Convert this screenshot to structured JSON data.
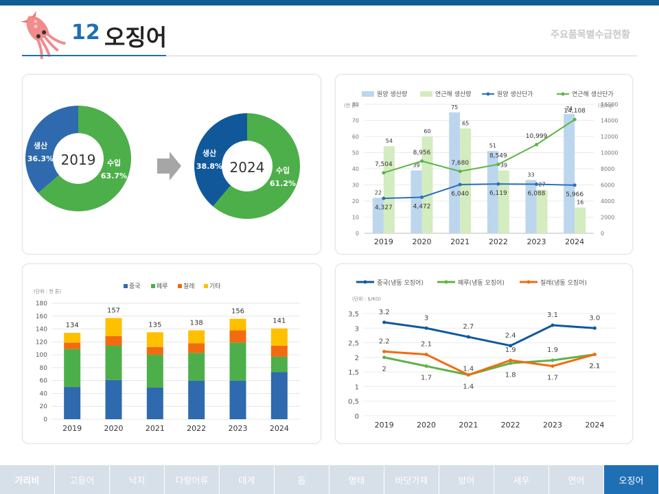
{
  "header": {
    "number": "12",
    "title": "오징어",
    "subtitle": "주요품목별수급현황"
  },
  "colors": {
    "blue_dark": "#2e6aad",
    "green": "#4daf4a",
    "orange": "#f26b0f",
    "yellow": "#ffc000",
    "light_blue": "#bcd6ee",
    "light_green": "#d3ecc0",
    "navy": "#10589a",
    "line_blue": "#2b70b8",
    "line_green": "#5db347",
    "accent": "#1f6fb5"
  },
  "nav": {
    "items": [
      "가리비",
      "고등어",
      "낙지",
      "다랑어류",
      "대게",
      "돔",
      "명태",
      "바닷가재",
      "방어",
      "새우",
      "연어",
      "오징어"
    ],
    "active": 11
  },
  "chart_data": [
    {
      "type": "pie",
      "variant": "donut",
      "center_label": "2019",
      "slices": [
        {
          "label": "생산",
          "value_label": "36.3%",
          "value": 36.3
        },
        {
          "label": "수입",
          "value_label": "63.7%",
          "value": 63.7
        }
      ]
    },
    {
      "type": "pie",
      "variant": "donut",
      "center_label": "2024",
      "slices": [
        {
          "label": "생산",
          "value_label": "38.8%",
          "value": 38.8
        },
        {
          "label": "수입",
          "value_label": "61.2%",
          "value": 61.2
        }
      ]
    },
    {
      "type": "bar",
      "categories": [
        "2019",
        "2020",
        "2021",
        "2022",
        "2023",
        "2024"
      ],
      "y_unit_label": "(천 톤)",
      "y2_unit_label": "(원/kg)",
      "ylim": [
        0,
        80
      ],
      "y_ticks": [
        0,
        10,
        20,
        30,
        40,
        50,
        60,
        70,
        80
      ],
      "y2lim": [
        0,
        16000
      ],
      "y2_ticks": [
        0,
        2000,
        4000,
        6000,
        8000,
        10000,
        12000,
        14000,
        16000
      ],
      "legend": [
        "원양 생산량",
        "연근해 생산량",
        "원양 생산단가",
        "연근해 생산단가"
      ],
      "legend_position": "top",
      "bar_series": [
        {
          "name": "원양 생산량",
          "values": [
            22,
            39,
            75,
            51,
            33,
            74
          ],
          "labels": [
            "22",
            "39",
            "75",
            "51",
            "33",
            "74"
          ]
        },
        {
          "name": "연근해 생산량",
          "values": [
            54,
            60,
            65,
            39,
            27,
            16
          ],
          "labels": [
            "54",
            "60",
            "65",
            "39",
            "27",
            "16"
          ]
        }
      ],
      "line_series": [
        {
          "name": "원양 생산단가",
          "axis": "right",
          "values": [
            4327,
            4472,
            6040,
            6119,
            6088,
            5966
          ],
          "labels": [
            "4,327",
            "4,472",
            "6,040",
            "6,119",
            "6,088",
            "5,966"
          ]
        },
        {
          "name": "연근해 생산단가",
          "axis": "right",
          "values": [
            7504,
            8956,
            7680,
            8549,
            10999,
            14108
          ],
          "labels": [
            "7,504",
            "8,956",
            "7,680",
            "8,549",
            "10,999",
            "14,108"
          ]
        }
      ]
    },
    {
      "type": "bar",
      "stacked": true,
      "unit_label": "(단위 : 천 톤)",
      "categories": [
        "2019",
        "2020",
        "2021",
        "2022",
        "2023",
        "2024"
      ],
      "ylim": [
        0,
        180
      ],
      "y_ticks": [
        0,
        20,
        40,
        60,
        80,
        100,
        120,
        140,
        160,
        180
      ],
      "legend": [
        "중국",
        "페루",
        "칠레",
        "기타"
      ],
      "legend_position": "top",
      "series": [
        {
          "name": "중국",
          "values": [
            50,
            61,
            49,
            60,
            60,
            73
          ]
        },
        {
          "name": "페루",
          "values": [
            59,
            53,
            51,
            43,
            59,
            24
          ]
        },
        {
          "name": "칠레",
          "values": [
            10,
            15,
            12,
            15,
            19,
            17
          ]
        },
        {
          "name": "기타",
          "values": [
            15,
            28,
            23,
            20,
            18,
            27
          ]
        }
      ],
      "totals": [
        "134",
        "157",
        "135",
        "138",
        "156",
        "141"
      ]
    },
    {
      "type": "line",
      "unit_label": "(단위 : $/KG)",
      "categories": [
        "2019",
        "2020",
        "2021",
        "2022",
        "2023",
        "2024"
      ],
      "ylim": [
        0,
        3.5
      ],
      "y_ticks": [
        "0",
        "0,5",
        "1",
        "1,5",
        "2",
        "2,5",
        "3",
        "3,5"
      ],
      "legend": [
        "중국(냉동 오징어)",
        "페루(냉동 오징어)",
        "칠레(냉동 오징어)"
      ],
      "legend_position": "top",
      "series": [
        {
          "name": "중국(냉동 오징어)",
          "values": [
            3.2,
            3.0,
            2.7,
            2.4,
            3.1,
            3.0
          ],
          "labels": [
            "3.2",
            "3",
            "2.7",
            "2.4",
            "3.1",
            "3.0"
          ]
        },
        {
          "name": "페루(냉동 오징어)",
          "values": [
            2.0,
            1.7,
            1.4,
            1.8,
            1.9,
            2.1
          ],
          "labels": [
            "2",
            "1.7",
            "1.4",
            "1.8",
            "1.9",
            "2.1"
          ]
        },
        {
          "name": "칠레(냉동 오징어)",
          "values": [
            2.2,
            2.1,
            1.4,
            1.9,
            1.7,
            2.1
          ],
          "labels": [
            "2.2",
            "2.1",
            "1.4",
            "1.9",
            "1.7",
            "2.1"
          ]
        }
      ]
    }
  ]
}
